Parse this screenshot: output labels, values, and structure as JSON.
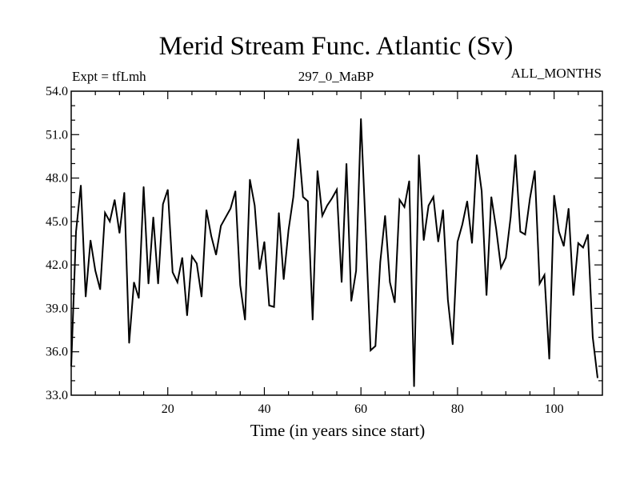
{
  "chart_data": {
    "type": "line",
    "title": "Merid Stream Func. Atlantic (Sv)",
    "expt": "Expt = tfLmh",
    "subtitle": "297_0_MaBP",
    "months": "ALL_MONTHS",
    "xlabel": "Time (in years since start)",
    "ylabel": "",
    "xlim": [
      0,
      110
    ],
    "ylim": [
      33.0,
      54.0
    ],
    "x_ticks": [
      20,
      40,
      60,
      80,
      100
    ],
    "y_ticks": [
      "33.0",
      "36.0",
      "39.0",
      "42.0",
      "45.0",
      "48.0",
      "51.0",
      "54.0"
    ],
    "line_color": "#000000",
    "series": [
      {
        "values": [
          35.0,
          44.3,
          47.5,
          39.8,
          43.7,
          41.6,
          40.3,
          45.6,
          45.0,
          46.5,
          44.2,
          47.0,
          36.6,
          40.8,
          39.7,
          47.4,
          40.7,
          45.3,
          40.7,
          46.2,
          47.2,
          41.5,
          40.8,
          42.5,
          38.5,
          42.6,
          42.1,
          39.8,
          45.8,
          44.0,
          42.7,
          44.7,
          45.3,
          45.9,
          47.1,
          40.6,
          38.2,
          47.9,
          46.1,
          41.7,
          43.6,
          39.2,
          39.1,
          45.6,
          41.0,
          44.4,
          46.7,
          50.7,
          46.7,
          46.4,
          38.2,
          48.5,
          45.4,
          46.1,
          46.6,
          47.2,
          40.8,
          49.0,
          39.5,
          41.6,
          52.1,
          44.3,
          36.1,
          36.4,
          42.2,
          45.4,
          40.8,
          39.4,
          46.5,
          46.0,
          47.8,
          33.6,
          49.6,
          43.7,
          46.1,
          46.7,
          43.6,
          45.8,
          39.6,
          36.5,
          43.6,
          44.8,
          46.4,
          43.5,
          49.6,
          47.1,
          39.9,
          46.7,
          44.5,
          41.8,
          42.5,
          45.3,
          49.6,
          44.3,
          44.1,
          46.6,
          48.5,
          40.7,
          41.3,
          35.5,
          46.8,
          44.3,
          43.3,
          45.9,
          39.9,
          43.5,
          43.2,
          44.1,
          37.0,
          34.2
        ]
      }
    ]
  }
}
